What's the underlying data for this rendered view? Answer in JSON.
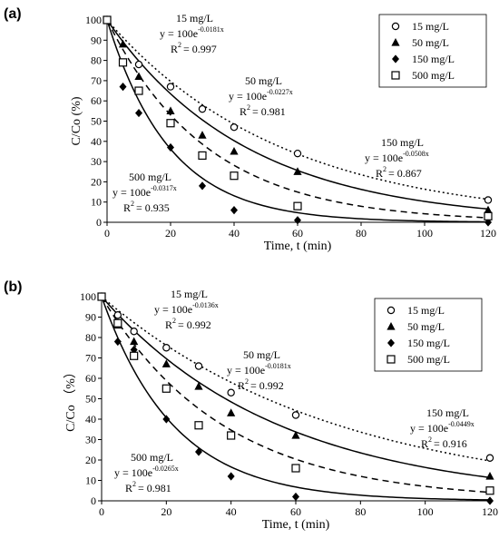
{
  "chart_data": [
    {
      "type": "scatter",
      "panel_label": "(a)",
      "xlabel": "Time, t (min)",
      "ylabel": "C/Co (%)",
      "xlim": [
        0,
        120
      ],
      "ylim": [
        0,
        100
      ],
      "xticks": [
        0,
        20,
        40,
        60,
        80,
        100,
        120
      ],
      "yticks": [
        0,
        10,
        20,
        30,
        40,
        50,
        60,
        70,
        80,
        90,
        100
      ],
      "grid": false,
      "legend_position": "top-right",
      "series": [
        {
          "name": "15 mg/L",
          "marker": "circle-open",
          "line": "dotted",
          "k": 0.0181,
          "x": [
            0,
            10,
            20,
            30,
            40,
            60,
            120
          ],
          "y": [
            100,
            78,
            67,
            56,
            47,
            34,
            11
          ],
          "label": {
            "name": "15 mg/L",
            "coef": "y = 100e",
            "exp": "-0.0181x",
            "r2": "= 0.997"
          }
        },
        {
          "name": "50 mg/L",
          "marker": "triangle",
          "line": "solid",
          "k": 0.0227,
          "x": [
            0,
            5,
            10,
            20,
            30,
            40,
            60,
            120
          ],
          "y": [
            100,
            88,
            72,
            55,
            43,
            35,
            25,
            6
          ],
          "label": {
            "name": "50 mg/L",
            "coef": "y = 100e",
            "exp": "-0.0227x",
            "r2": "= 0.981"
          }
        },
        {
          "name": "150 mg/L",
          "marker": "diamond",
          "line": "solid",
          "k": 0.0508,
          "x": [
            0,
            5,
            10,
            20,
            30,
            40,
            60,
            120
          ],
          "y": [
            100,
            67,
            54,
            37,
            18,
            6,
            1,
            0
          ],
          "label": {
            "name": "150 mg/L",
            "coef": "y = 100e",
            "exp": "-0.0508x",
            "r2": "= 0.867"
          }
        },
        {
          "name": "500 mg/L",
          "marker": "square-open",
          "line": "dashed",
          "k": 0.0317,
          "x": [
            0,
            5,
            10,
            20,
            30,
            40,
            60,
            120
          ],
          "y": [
            100,
            79,
            65,
            49,
            33,
            23,
            8,
            3
          ],
          "label": {
            "name": "500 mg/L",
            "coef": "y = 100e",
            "exp": "-0.0317x",
            "r2": "= 0.935"
          }
        }
      ]
    },
    {
      "type": "scatter",
      "panel_label": "(b)",
      "xlabel": "Time, t (min)",
      "ylabel": "C/Co （%）",
      "xlim": [
        0,
        120
      ],
      "ylim": [
        0,
        100
      ],
      "xticks": [
        0,
        20,
        40,
        60,
        80,
        100,
        120
      ],
      "yticks": [
        0,
        10,
        20,
        30,
        40,
        50,
        60,
        70,
        80,
        90,
        100
      ],
      "grid": false,
      "legend_position": "top-right",
      "series": [
        {
          "name": "15 mg/L",
          "marker": "circle-open",
          "line": "dotted",
          "k": 0.0136,
          "x": [
            0,
            5,
            10,
            20,
            30,
            40,
            60,
            120
          ],
          "y": [
            100,
            91,
            83,
            75,
            66,
            53,
            42,
            21
          ],
          "label": {
            "name": "15 mg/L",
            "coef": "y = 100e",
            "exp": "-0.0136x",
            "r2": "= 0.992"
          }
        },
        {
          "name": "50 mg/L",
          "marker": "triangle",
          "line": "solid",
          "k": 0.0181,
          "x": [
            0,
            5,
            10,
            20,
            30,
            40,
            60,
            120
          ],
          "y": [
            100,
            86,
            78,
            67,
            56,
            43,
            32,
            12
          ],
          "label": {
            "name": "50 mg/L",
            "coef": "y = 100e",
            "exp": "-0.0181x",
            "r2": "= 0.992"
          }
        },
        {
          "name": "150 mg/L",
          "marker": "diamond",
          "line": "solid",
          "k": 0.0449,
          "x": [
            0,
            5,
            10,
            20,
            30,
            40,
            60,
            120
          ],
          "y": [
            100,
            78,
            74,
            40,
            24,
            12,
            2,
            0
          ],
          "label": {
            "name": "150 mg/L",
            "coef": "y = 100e",
            "exp": "-0.0449x",
            "r2": "= 0.916"
          }
        },
        {
          "name": "500 mg/L",
          "marker": "square-open",
          "line": "dashed",
          "k": 0.0265,
          "x": [
            0,
            5,
            10,
            20,
            30,
            40,
            60,
            120
          ],
          "y": [
            100,
            87,
            71,
            55,
            37,
            32,
            16,
            5
          ],
          "label": {
            "name": "500 mg/L",
            "coef": "y = 100e",
            "exp": "-0.0265x",
            "r2": "= 0.981"
          }
        }
      ]
    }
  ]
}
